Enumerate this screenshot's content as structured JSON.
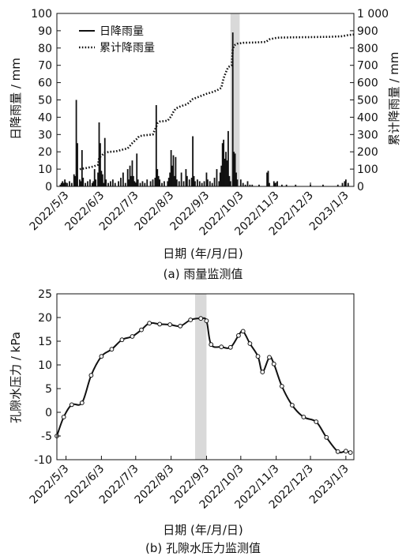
{
  "chart_data": [
    {
      "caption": "(a) 雨量监测值",
      "type": "bar",
      "xlabel": "日期 (年/月/日)",
      "ylabel": "日降雨量 / mm",
      "ylabel_right": "累计降雨量 / mm",
      "ylim": [
        0,
        100
      ],
      "ylim_right": [
        0,
        1000
      ],
      "yticks": [
        "0",
        "10",
        "20",
        "30",
        "40",
        "50",
        "60",
        "70",
        "80",
        "90",
        "100"
      ],
      "yticks_right": [
        "0",
        "100",
        "200",
        "300",
        "400",
        "500",
        "600",
        "700",
        "800",
        "900",
        "1 000"
      ],
      "xlim": [
        "2022-04-25",
        "2023-01-10"
      ],
      "xticks": [
        {
          "date": "2022-05-03",
          "label": "2022/5/3"
        },
        {
          "date": "2022-06-03",
          "label": "2022/6/3"
        },
        {
          "date": "2022-07-03",
          "label": "2022/7/3"
        },
        {
          "date": "2022-08-03",
          "label": "2022/8/3"
        },
        {
          "date": "2022-09-03",
          "label": "2022/9/3"
        },
        {
          "date": "2022-10-03",
          "label": "2022/10/3"
        },
        {
          "date": "2022-11-03",
          "label": "2022/11/3"
        },
        {
          "date": "2022-12-03",
          "label": "2022/12/3"
        },
        {
          "date": "2023-01-03",
          "label": "2023/1/3"
        }
      ],
      "highlight": [
        "2022-09-24",
        "2022-10-02"
      ],
      "legend_position": "top-left",
      "series": [
        {
          "name": "日降雨量",
          "type": "bar",
          "axis": "left",
          "points": [
            [
              "2022-04-28",
              1
            ],
            [
              "2022-04-29",
              2
            ],
            [
              "2022-04-30",
              3
            ],
            [
              "2022-05-01",
              2
            ],
            [
              "2022-05-02",
              4
            ],
            [
              "2022-05-04",
              2
            ],
            [
              "2022-05-06",
              3
            ],
            [
              "2022-05-08",
              2
            ],
            [
              "2022-05-10",
              7
            ],
            [
              "2022-05-11",
              6
            ],
            [
              "2022-05-12",
              50
            ],
            [
              "2022-05-13",
              25
            ],
            [
              "2022-05-15",
              4
            ],
            [
              "2022-05-16",
              3
            ],
            [
              "2022-05-17",
              21
            ],
            [
              "2022-05-18",
              5
            ],
            [
              "2022-05-20",
              2
            ],
            [
              "2022-05-22",
              3
            ],
            [
              "2022-05-24",
              4
            ],
            [
              "2022-05-26",
              2
            ],
            [
              "2022-05-27",
              3
            ],
            [
              "2022-05-28",
              10
            ],
            [
              "2022-05-29",
              4
            ],
            [
              "2022-05-31",
              8
            ],
            [
              "2022-06-01",
              37
            ],
            [
              "2022-06-02",
              25
            ],
            [
              "2022-06-03",
              9
            ],
            [
              "2022-06-04",
              7
            ],
            [
              "2022-06-05",
              2
            ],
            [
              "2022-06-06",
              28
            ],
            [
              "2022-06-07",
              4
            ],
            [
              "2022-06-09",
              2
            ],
            [
              "2022-06-11",
              3
            ],
            [
              "2022-06-13",
              4
            ],
            [
              "2022-06-15",
              2
            ],
            [
              "2022-06-18",
              3
            ],
            [
              "2022-06-20",
              5
            ],
            [
              "2022-06-22",
              8
            ],
            [
              "2022-06-24",
              2
            ],
            [
              "2022-06-26",
              10
            ],
            [
              "2022-06-27",
              4
            ],
            [
              "2022-06-28",
              12
            ],
            [
              "2022-06-29",
              6
            ],
            [
              "2022-06-30",
              15
            ],
            [
              "2022-07-01",
              6
            ],
            [
              "2022-07-02",
              3
            ],
            [
              "2022-07-03",
              2
            ],
            [
              "2022-07-04",
              19
            ],
            [
              "2022-07-05",
              4
            ],
            [
              "2022-07-07",
              2
            ],
            [
              "2022-07-09",
              3
            ],
            [
              "2022-07-11",
              2
            ],
            [
              "2022-07-13",
              4
            ],
            [
              "2022-07-16",
              3
            ],
            [
              "2022-07-18",
              4
            ],
            [
              "2022-07-20",
              5
            ],
            [
              "2022-07-21",
              47
            ],
            [
              "2022-07-22",
              10
            ],
            [
              "2022-07-23",
              6
            ],
            [
              "2022-07-24",
              4
            ],
            [
              "2022-07-26",
              2
            ],
            [
              "2022-07-28",
              3
            ],
            [
              "2022-07-31",
              3
            ],
            [
              "2022-08-01",
              5
            ],
            [
              "2022-08-02",
              8
            ],
            [
              "2022-08-03",
              21
            ],
            [
              "2022-08-04",
              12
            ],
            [
              "2022-08-05",
              18
            ],
            [
              "2022-08-06",
              6
            ],
            [
              "2022-08-07",
              17
            ],
            [
              "2022-08-08",
              4
            ],
            [
              "2022-08-10",
              3
            ],
            [
              "2022-08-12",
              8
            ],
            [
              "2022-08-14",
              3
            ],
            [
              "2022-08-16",
              10
            ],
            [
              "2022-08-17",
              6
            ],
            [
              "2022-08-19",
              4
            ],
            [
              "2022-08-21",
              5
            ],
            [
              "2022-08-22",
              29
            ],
            [
              "2022-08-23",
              6
            ],
            [
              "2022-08-24",
              3
            ],
            [
              "2022-08-26",
              4
            ],
            [
              "2022-08-28",
              3
            ],
            [
              "2022-08-30",
              2
            ],
            [
              "2022-09-01",
              3
            ],
            [
              "2022-09-03",
              8
            ],
            [
              "2022-09-04",
              4
            ],
            [
              "2022-09-06",
              3
            ],
            [
              "2022-09-08",
              2
            ],
            [
              "2022-09-10",
              5
            ],
            [
              "2022-09-12",
              10
            ],
            [
              "2022-09-14",
              3
            ],
            [
              "2022-09-15",
              8
            ],
            [
              "2022-09-16",
              12
            ],
            [
              "2022-09-17",
              25
            ],
            [
              "2022-09-18",
              27
            ],
            [
              "2022-09-19",
              16
            ],
            [
              "2022-09-20",
              20
            ],
            [
              "2022-09-21",
              15
            ],
            [
              "2022-09-22",
              32
            ],
            [
              "2022-09-23",
              6
            ],
            [
              "2022-09-24",
              3
            ],
            [
              "2022-09-26",
              89
            ],
            [
              "2022-09-27",
              20
            ],
            [
              "2022-09-28",
              19
            ],
            [
              "2022-09-29",
              8
            ],
            [
              "2022-09-30",
              4
            ],
            [
              "2022-10-03",
              4
            ],
            [
              "2022-10-05",
              2
            ],
            [
              "2022-10-07",
              1
            ],
            [
              "2022-10-09",
              3
            ],
            [
              "2022-10-11",
              1
            ],
            [
              "2022-10-13",
              1
            ],
            [
              "2022-10-19",
              1
            ],
            [
              "2022-10-26",
              8
            ],
            [
              "2022-10-27",
              9
            ],
            [
              "2022-10-28",
              2
            ],
            [
              "2022-11-01",
              3
            ],
            [
              "2022-11-02",
              2
            ],
            [
              "2022-11-04",
              3
            ],
            [
              "2022-11-08",
              1
            ],
            [
              "2022-11-12",
              1
            ],
            [
              "2022-11-20",
              1
            ],
            [
              "2022-12-03",
              1
            ],
            [
              "2022-12-14",
              1
            ],
            [
              "2022-12-27",
              1
            ],
            [
              "2022-12-31",
              2
            ],
            [
              "2023-01-02",
              3
            ],
            [
              "2023-01-03",
              4
            ],
            [
              "2023-01-05",
              2
            ]
          ]
        },
        {
          "name": "累计降雨量",
          "type": "line",
          "style": "dotted",
          "axis": "right",
          "points": [
            [
              "2022-05-15",
              100
            ],
            [
              "2022-05-20",
              105
            ],
            [
              "2022-05-27",
              115
            ],
            [
              "2022-05-31",
              125
            ],
            [
              "2022-06-01",
              165
            ],
            [
              "2022-06-06",
              195
            ],
            [
              "2022-06-10",
              200
            ],
            [
              "2022-06-15",
              202
            ],
            [
              "2022-06-20",
              210
            ],
            [
              "2022-06-26",
              220
            ],
            [
              "2022-06-30",
              250
            ],
            [
              "2022-07-04",
              275
            ],
            [
              "2022-07-06",
              290
            ],
            [
              "2022-07-10",
              295
            ],
            [
              "2022-07-18",
              300
            ],
            [
              "2022-07-21",
              345
            ],
            [
              "2022-07-22",
              365
            ],
            [
              "2022-07-24",
              375
            ],
            [
              "2022-07-31",
              380
            ],
            [
              "2022-08-03",
              405
            ],
            [
              "2022-08-05",
              430
            ],
            [
              "2022-08-07",
              450
            ],
            [
              "2022-08-12",
              465
            ],
            [
              "2022-08-17",
              475
            ],
            [
              "2022-08-22",
              505
            ],
            [
              "2022-08-26",
              515
            ],
            [
              "2022-08-30",
              525
            ],
            [
              "2022-09-03",
              535
            ],
            [
              "2022-09-08",
              545
            ],
            [
              "2022-09-12",
              555
            ],
            [
              "2022-09-16",
              570
            ],
            [
              "2022-09-17",
              600
            ],
            [
              "2022-09-18",
              625
            ],
            [
              "2022-09-20",
              660
            ],
            [
              "2022-09-22",
              690
            ],
            [
              "2022-09-25",
              700
            ],
            [
              "2022-09-26",
              790
            ],
            [
              "2022-09-27",
              815
            ],
            [
              "2022-09-30",
              825
            ],
            [
              "2022-10-05",
              830
            ],
            [
              "2022-10-15",
              832
            ],
            [
              "2022-10-25",
              835
            ],
            [
              "2022-10-28",
              850
            ],
            [
              "2022-11-04",
              860
            ],
            [
              "2022-11-20",
              862
            ],
            [
              "2022-12-03",
              863
            ],
            [
              "2022-12-20",
              865
            ],
            [
              "2022-12-31",
              868
            ],
            [
              "2023-01-05",
              875
            ],
            [
              "2023-01-10",
              878
            ]
          ]
        }
      ]
    },
    {
      "caption": "(b) 孔隙水压力监测值",
      "type": "line",
      "xlabel": "日期 (年/月/日)",
      "ylabel": "孔隙水压力 / kPa",
      "ylim": [
        -10,
        25
      ],
      "yticks": [
        "-10",
        "-5",
        "0",
        "5",
        "10",
        "15",
        "20",
        "25"
      ],
      "xlim": [
        "2022-04-25",
        "2023-01-10"
      ],
      "xticks": [
        {
          "date": "2022-05-03",
          "label": "2022/5/3"
        },
        {
          "date": "2022-06-03",
          "label": "2022/6/3"
        },
        {
          "date": "2022-07-03",
          "label": "2022/7/3"
        },
        {
          "date": "2022-08-03",
          "label": "2022/8/3"
        },
        {
          "date": "2022-09-03",
          "label": "2022/9/3"
        },
        {
          "date": "2022-10-03",
          "label": "2022/10/3"
        },
        {
          "date": "2022-11-03",
          "label": "2022/11/3"
        },
        {
          "date": "2022-12-03",
          "label": "2022/12/3"
        },
        {
          "date": "2023-01-03",
          "label": "2023/1/3"
        }
      ],
      "highlight": [
        "2022-08-24",
        "2022-09-03"
      ],
      "series": [
        {
          "type": "line",
          "markers": "open-circle",
          "points": [
            [
              "2022-04-25",
              -5
            ],
            [
              "2022-05-01",
              -1
            ],
            [
              "2022-05-08",
              1.6
            ],
            [
              "2022-05-17",
              2
            ],
            [
              "2022-05-25",
              7.8
            ],
            [
              "2022-06-03",
              11.8
            ],
            [
              "2022-06-12",
              13.3
            ],
            [
              "2022-06-21",
              15.3
            ],
            [
              "2022-06-30",
              16
            ],
            [
              "2022-07-08",
              17.4
            ],
            [
              "2022-07-15",
              18.8
            ],
            [
              "2022-07-24",
              18.6
            ],
            [
              "2022-08-02",
              18.5
            ],
            [
              "2022-08-11",
              18.2
            ],
            [
              "2022-08-20",
              19.5
            ],
            [
              "2022-08-29",
              19.8
            ],
            [
              "2022-09-03",
              19.3
            ],
            [
              "2022-09-07",
              14.3
            ],
            [
              "2022-09-16",
              13.8
            ],
            [
              "2022-09-24",
              13.7
            ],
            [
              "2022-10-01",
              16.2
            ],
            [
              "2022-10-05",
              17.1
            ],
            [
              "2022-10-11",
              14.5
            ],
            [
              "2022-10-18",
              11.8
            ],
            [
              "2022-10-22",
              8.5
            ],
            [
              "2022-10-28",
              11.6
            ],
            [
              "2022-11-01",
              10.2
            ],
            [
              "2022-11-08",
              5.5
            ],
            [
              "2022-11-17",
              1.5
            ],
            [
              "2022-11-27",
              -1
            ],
            [
              "2022-12-08",
              -2
            ],
            [
              "2022-12-17",
              -5.3
            ],
            [
              "2022-12-27",
              -8.3
            ],
            [
              "2023-01-03",
              -8.2
            ],
            [
              "2023-01-07",
              -8.5
            ]
          ]
        }
      ]
    }
  ]
}
